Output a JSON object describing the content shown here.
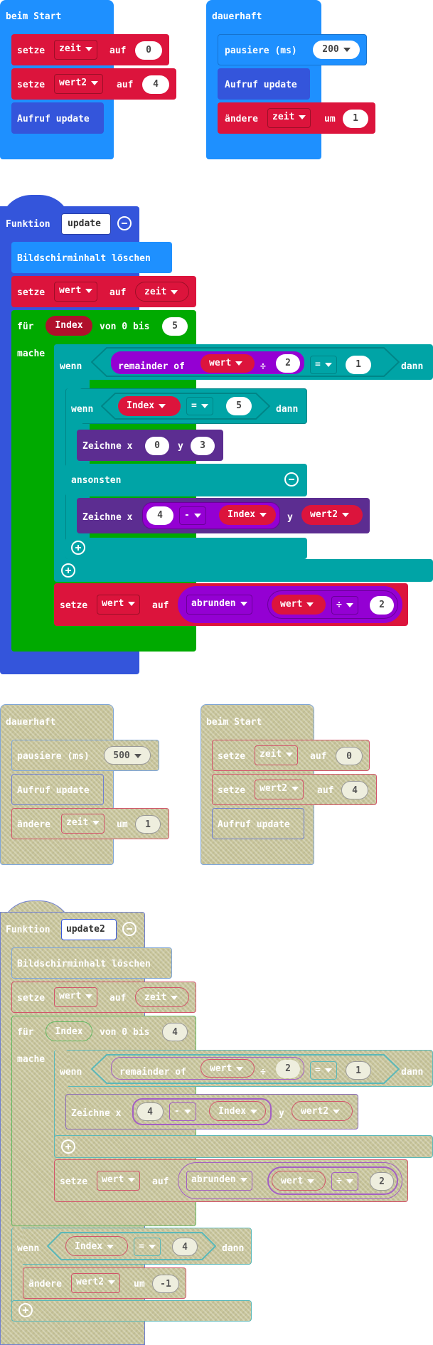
{
  "colors": {
    "event": "#1e90ff",
    "variable": "#dc143c",
    "function": "#3455db",
    "loop": "#00aa00",
    "logic": "#00a4a6",
    "math": "#9400d3",
    "led": "#5c2d91",
    "disabled": "#c8c59b"
  },
  "g1": {
    "title": "beim Start",
    "r1": {
      "kw": "setze",
      "var": "zeit",
      "auf": "auf",
      "val": "0"
    },
    "r2": {
      "kw": "setze",
      "var": "wert2",
      "auf": "auf",
      "val": "4"
    },
    "r3": {
      "text": "Aufruf update"
    }
  },
  "g2": {
    "title": "dauerhaft",
    "r1": {
      "kw": "pausiere (ms)",
      "val": "200"
    },
    "r2": {
      "text": "Aufruf update"
    },
    "r3": {
      "kw": "ändere",
      "var": "zeit",
      "um": "um",
      "val": "1"
    }
  },
  "f1": {
    "kw": "Funktion",
    "name": "update",
    "clear": "Bildschirminhalt löschen",
    "set1": {
      "kw": "setze",
      "var": "wert",
      "auf": "auf",
      "val": "zeit"
    },
    "loop": {
      "fuer": "für",
      "idx": "Index",
      "von": "von 0 bis",
      "max": "5",
      "mache": "mache"
    },
    "if1": {
      "wenn": "wenn",
      "rem": "remainder of",
      "var": "wert",
      "div": "÷",
      "n": "2",
      "op": "=",
      "rhs": "1",
      "dann": "dann"
    },
    "if2": {
      "wenn": "wenn",
      "idx": "Index",
      "op": "=",
      "rhs": "5",
      "dann": "dann"
    },
    "plot1": {
      "kw": "Zeichne x",
      "x": "0",
      "y": "y",
      "yv": "3"
    },
    "else": "ansonsten",
    "plot2": {
      "kw": "Zeichne x",
      "a": "4",
      "op": "-",
      "idx": "Index",
      "y": "y",
      "yv": "wert2"
    },
    "set2": {
      "kw": "setze",
      "var": "wert",
      "auf": "auf",
      "fn": "abrunden",
      "v": "wert",
      "op": "÷",
      "n": "2"
    }
  },
  "g3": {
    "title": "dauerhaft",
    "r1": {
      "kw": "pausiere (ms)",
      "val": "500"
    },
    "r2": {
      "text": "Aufruf update"
    },
    "r3": {
      "kw": "ändere",
      "var": "zeit",
      "um": "um",
      "val": "1"
    }
  },
  "g4": {
    "title": "beim Start",
    "r1": {
      "kw": "setze",
      "var": "zeit",
      "auf": "auf",
      "val": "0"
    },
    "r2": {
      "kw": "setze",
      "var": "wert2",
      "auf": "auf",
      "val": "4"
    },
    "r3": {
      "text": "Aufruf update"
    }
  },
  "f2": {
    "kw": "Funktion",
    "name": "update2",
    "clear": "Bildschirminhalt löschen",
    "set1": {
      "kw": "setze",
      "var": "wert",
      "auf": "auf",
      "val": "zeit"
    },
    "loop": {
      "fuer": "für",
      "idx": "Index",
      "von": "von 0 bis",
      "max": "4",
      "mache": "mache"
    },
    "if1": {
      "wenn": "wenn",
      "rem": "remainder of",
      "var": "wert",
      "div": "÷",
      "n": "2",
      "op": "=",
      "rhs": "1",
      "dann": "dann"
    },
    "plot": {
      "kw": "Zeichne x",
      "a": "4",
      "op": "-",
      "idx": "Index",
      "y": "y",
      "yv": "wert2"
    },
    "set2": {
      "kw": "setze",
      "var": "wert",
      "auf": "auf",
      "fn": "abrunden",
      "v": "wert",
      "op": "÷",
      "n": "2"
    },
    "if2": {
      "wenn": "wenn",
      "idx": "Index",
      "op": "=",
      "rhs": "4",
      "dann": "dann"
    },
    "chg": {
      "kw": "ändere",
      "var": "wert2",
      "um": "um",
      "val": "-1"
    }
  }
}
